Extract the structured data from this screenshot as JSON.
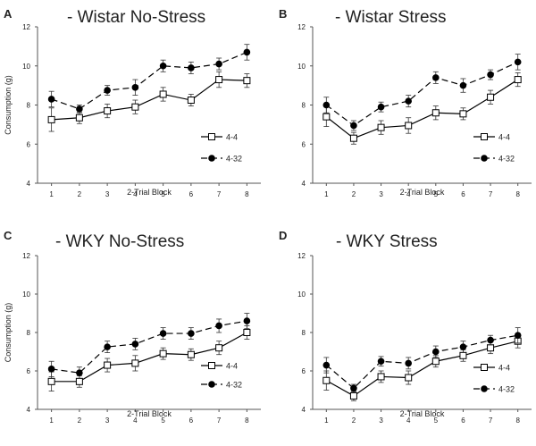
{
  "figure": {
    "background": "#ffffff",
    "line_color": "#000000",
    "axis_color": "#555555"
  },
  "chart_data": [
    {
      "letter": "A",
      "type": "line",
      "title": "- Wistar No-Stress",
      "xlabel": "2-Trial Block",
      "ylabel": "Consumption (g)",
      "ylim": [
        4,
        12
      ],
      "yticks": [
        4,
        6,
        8,
        10,
        12
      ],
      "categories": [
        "1",
        "2",
        "3",
        "4",
        "5",
        "6",
        "7",
        "8"
      ],
      "series": [
        {
          "name": "4-4",
          "marker": "open-square",
          "linestyle": "solid",
          "values": [
            7.25,
            7.35,
            7.7,
            7.9,
            8.55,
            8.25,
            9.3,
            9.25
          ],
          "errors": [
            0.6,
            0.3,
            0.35,
            0.35,
            0.35,
            0.3,
            0.4,
            0.35
          ]
        },
        {
          "name": "4-32",
          "marker": "filled-circle",
          "linestyle": "dashed",
          "values": [
            8.3,
            7.8,
            8.75,
            8.9,
            10.0,
            9.9,
            10.1,
            10.7
          ],
          "errors": [
            0.4,
            0.2,
            0.25,
            0.4,
            0.3,
            0.3,
            0.3,
            0.4
          ]
        }
      ]
    },
    {
      "letter": "B",
      "type": "line",
      "title": "- Wistar Stress",
      "xlabel": "2-Trial Block",
      "ylabel": "",
      "ylim": [
        4,
        12
      ],
      "yticks": [
        4,
        6,
        8,
        10,
        12
      ],
      "categories": [
        "1",
        "2",
        "3",
        "4",
        "5",
        "6",
        "7",
        "8"
      ],
      "series": [
        {
          "name": "4-4",
          "marker": "open-square",
          "linestyle": "solid",
          "values": [
            7.4,
            6.3,
            6.85,
            6.95,
            7.6,
            7.55,
            8.4,
            9.3
          ],
          "errors": [
            0.5,
            0.3,
            0.35,
            0.4,
            0.35,
            0.3,
            0.35,
            0.35
          ]
        },
        {
          "name": "4-32",
          "marker": "filled-circle",
          "linestyle": "dashed",
          "values": [
            8.0,
            6.95,
            7.9,
            8.2,
            9.4,
            9.0,
            9.55,
            10.2
          ],
          "errors": [
            0.4,
            0.25,
            0.25,
            0.3,
            0.3,
            0.35,
            0.25,
            0.4
          ]
        }
      ]
    },
    {
      "letter": "C",
      "type": "line",
      "title": "- WKY No-Stress",
      "xlabel": "2-Trial Block",
      "ylabel": "Consumption (g)",
      "ylim": [
        4,
        12
      ],
      "yticks": [
        4,
        6,
        8,
        10,
        12
      ],
      "categories": [
        "1",
        "2",
        "3",
        "4",
        "5",
        "6",
        "7",
        "8"
      ],
      "series": [
        {
          "name": "4-4",
          "marker": "open-square",
          "linestyle": "solid",
          "values": [
            5.45,
            5.45,
            6.3,
            6.4,
            6.9,
            6.85,
            7.2,
            8.0
          ],
          "errors": [
            0.5,
            0.3,
            0.35,
            0.4,
            0.3,
            0.3,
            0.35,
            0.35
          ]
        },
        {
          "name": "4-32",
          "marker": "filled-circle",
          "linestyle": "dashed",
          "values": [
            6.1,
            5.9,
            7.25,
            7.4,
            7.95,
            7.95,
            8.35,
            8.6
          ],
          "errors": [
            0.4,
            0.3,
            0.3,
            0.3,
            0.3,
            0.3,
            0.35,
            0.4
          ]
        }
      ]
    },
    {
      "letter": "D",
      "type": "line",
      "title": "- WKY Stress",
      "xlabel": "2-Trial Block",
      "ylabel": "",
      "ylim": [
        4,
        12
      ],
      "yticks": [
        4,
        6,
        8,
        10,
        12
      ],
      "categories": [
        "1",
        "2",
        "3",
        "4",
        "5",
        "6",
        "7",
        "8"
      ],
      "series": [
        {
          "name": "4-4",
          "marker": "open-square",
          "linestyle": "solid",
          "values": [
            5.5,
            4.7,
            5.7,
            5.65,
            6.5,
            6.8,
            7.2,
            7.55
          ],
          "errors": [
            0.5,
            0.25,
            0.3,
            0.35,
            0.3,
            0.3,
            0.3,
            0.35
          ]
        },
        {
          "name": "4-32",
          "marker": "filled-circle",
          "linestyle": "dashed",
          "values": [
            6.3,
            5.1,
            6.5,
            6.4,
            7.0,
            7.25,
            7.6,
            7.85
          ],
          "errors": [
            0.4,
            0.2,
            0.25,
            0.3,
            0.3,
            0.3,
            0.25,
            0.4
          ]
        }
      ]
    }
  ]
}
